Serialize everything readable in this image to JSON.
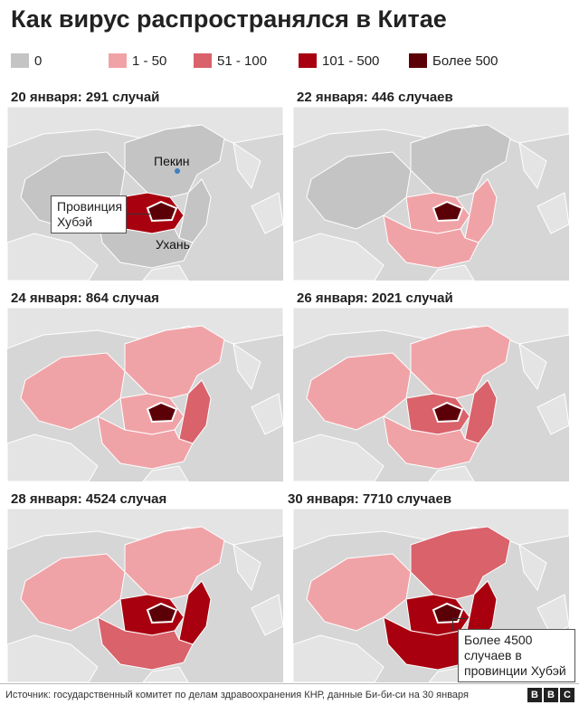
{
  "title": "Как вирус распространялся в Китае",
  "legend": [
    {
      "label": "0",
      "color": "#c4c4c4"
    },
    {
      "label": "1 - 50",
      "color": "#f0a3a7"
    },
    {
      "label": "51 - 100",
      "color": "#d9626b"
    },
    {
      "label": "101 - 500",
      "color": "#a8000f"
    },
    {
      "label": "Более 500",
      "color": "#5c0008"
    }
  ],
  "colors": {
    "sea": "#d6d6d6",
    "neighbor": "#e4e4e4",
    "zero": "#c4c4c4",
    "low": "#f0a3a7",
    "mid": "#d9626b",
    "high": "#a8000f",
    "top": "#5c0008"
  },
  "panels": [
    {
      "caption": "20 января: 291 случай",
      "west": "zero",
      "east": "zero",
      "south": "zero",
      "coast": "zero",
      "central": "high",
      "hubei": "top"
    },
    {
      "caption": "22 января: 446 случаев",
      "west": "zero",
      "east": "zero",
      "south": "low",
      "coast": "low",
      "central": "low",
      "hubei": "top"
    },
    {
      "caption": "24 января: 864 случая",
      "west": "low",
      "east": "low",
      "south": "low",
      "coast": "mid",
      "central": "low",
      "hubei": "top"
    },
    {
      "caption": "26 января: 2021 случай",
      "west": "low",
      "east": "low",
      "south": "low",
      "coast": "mid",
      "central": "mid",
      "hubei": "top"
    },
    {
      "caption": "28 января: 4524 случая",
      "west": "low",
      "east": "low",
      "south": "mid",
      "coast": "high",
      "central": "high",
      "hubei": "top"
    },
    {
      "caption": "30 января: 7710 случаев",
      "west": "low",
      "east": "mid",
      "south": "high",
      "coast": "high",
      "central": "high",
      "hubei": "top"
    }
  ],
  "annotations": {
    "hubei_label": "Провинция Хубэй",
    "beijing": "Пекин",
    "wuhan": "Ухань",
    "note": "Более 4500 случаев в провинции Хубэй"
  },
  "source": "Источник: государственный комитет по делам здравоохранения КНР, данные Би-би-си на 30 января",
  "logo": [
    "B",
    "B",
    "C"
  ]
}
